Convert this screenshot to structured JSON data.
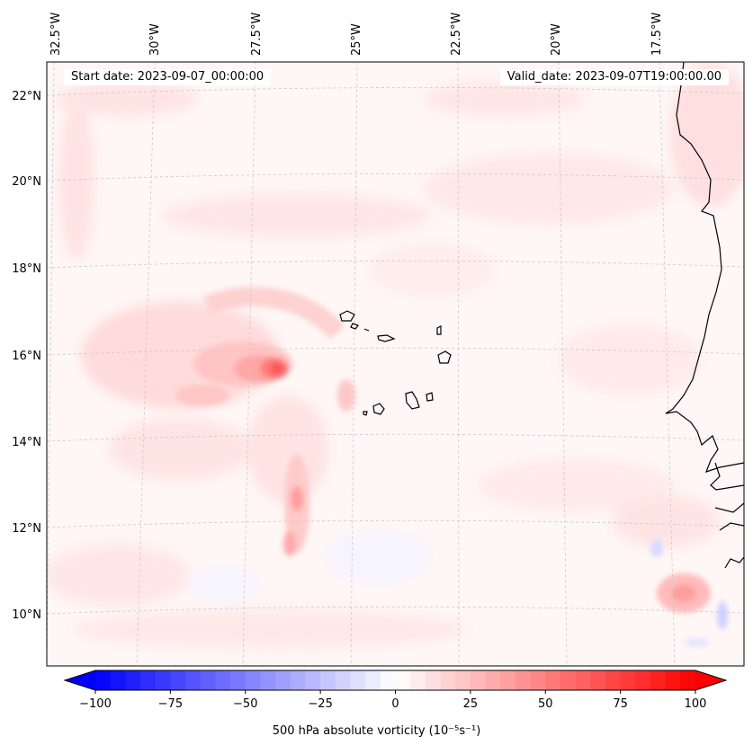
{
  "header": {
    "start_date": "Start date: 2023-09-07_00:00:00",
    "valid_date": "Valid_date: 2023-09-07T19:00:00.00"
  },
  "longitude_labels": [
    "32.5°W",
    "30°W",
    "27.5°W",
    "25°W",
    "22.5°W",
    "20°W",
    "17.5°W"
  ],
  "latitude_labels": [
    "22°N",
    "20°N",
    "18°N",
    "16°N",
    "14°N",
    "12°N",
    "10°N"
  ],
  "colorbar": {
    "min": -100,
    "max": 100,
    "ticks": [
      "−100",
      "−75",
      "−50",
      "−25",
      "0",
      "25",
      "50",
      "75",
      "100"
    ],
    "tick_values": [
      -100,
      -75,
      -50,
      -25,
      0,
      25,
      50,
      75,
      100
    ],
    "label": "500 hPa absolute vorticity (10⁻⁵s⁻¹)",
    "low_color": "#0000ff",
    "mid_color": "#ffffff",
    "high_color": "#ff0000"
  },
  "colors": {
    "background_tint": "#fff6f6",
    "coastline": "#000000",
    "gridline": "#c8c8c8"
  }
}
